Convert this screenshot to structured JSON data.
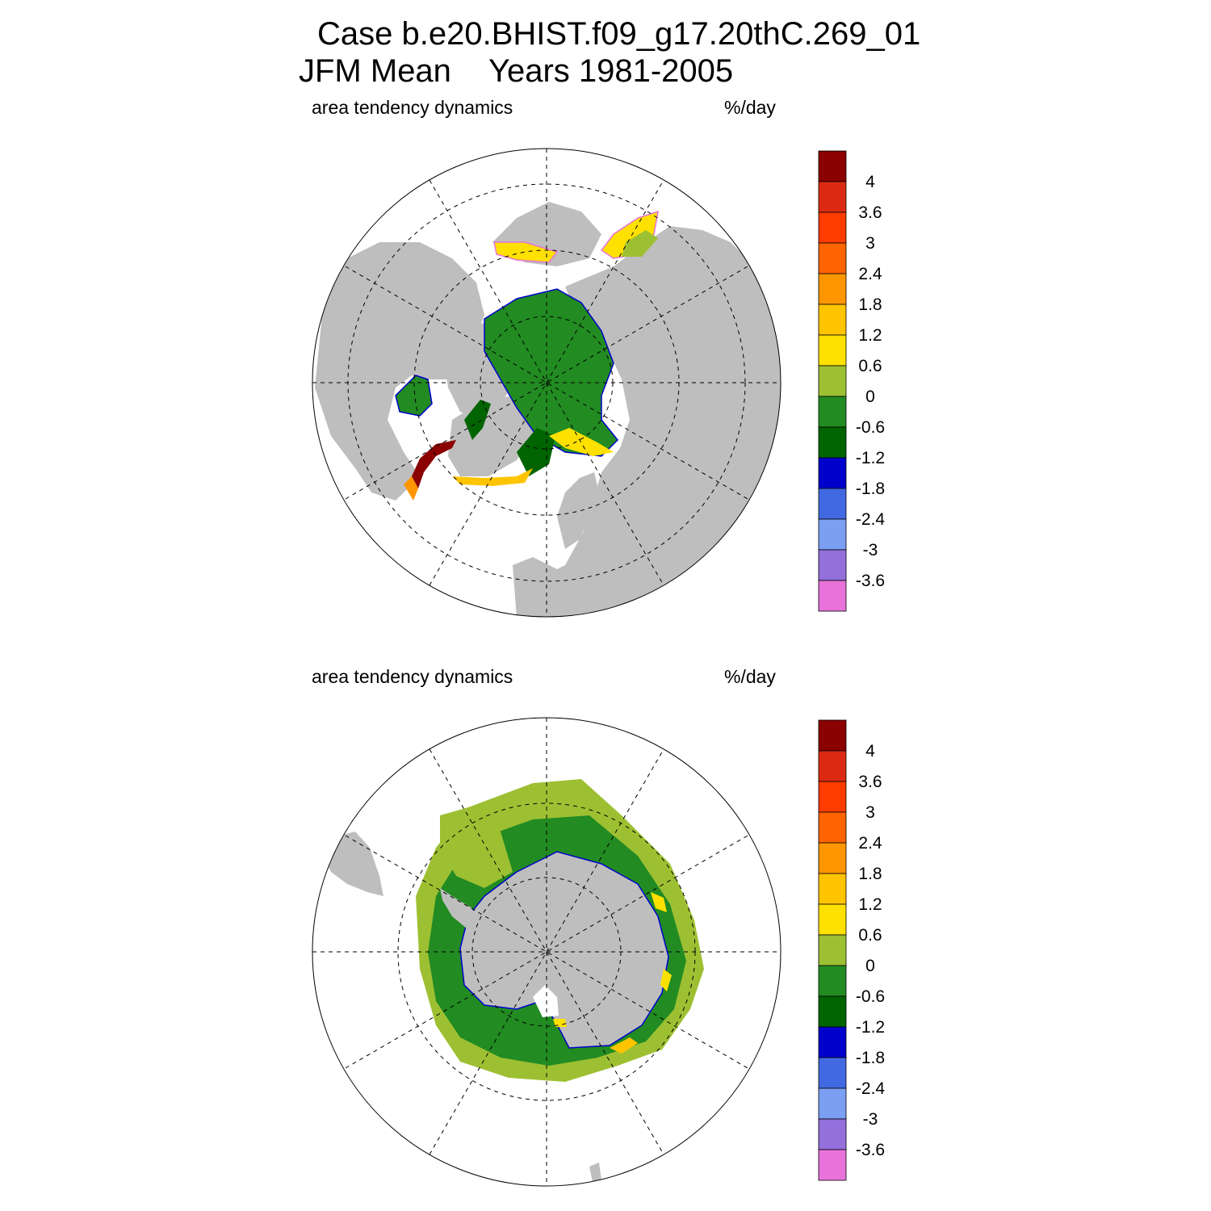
{
  "title": {
    "line1": "Case b.e20.BHIST.f09_g17.20thC.269_01",
    "line2_left": "JFM Mean",
    "line2_right": "Years 1981-2005"
  },
  "panels": [
    {
      "id": "north",
      "left_label": "area tendency dynamics",
      "right_label": "%/day"
    },
    {
      "id": "south",
      "left_label": "area tendency dynamics",
      "right_label": "%/day"
    }
  ],
  "colorbar": {
    "levels": [
      "4",
      "3.6",
      "3",
      "2.4",
      "1.8",
      "1.2",
      "0.6",
      "0",
      "-0.6",
      "-1.2",
      "-1.8",
      "-2.4",
      "-3",
      "-3.6"
    ],
    "colors": [
      "#8b0000",
      "#dc2a12",
      "#ff3c00",
      "#ff6400",
      "#ff9600",
      "#ffc400",
      "#ffe100",
      "#9dc032",
      "#228b22",
      "#006400",
      "#0000cd",
      "#4169e1",
      "#7b9ff2",
      "#9370db",
      "#e872da"
    ]
  },
  "colors": {
    "land": "#bebebe",
    "ocean": "#ffffff",
    "grid": "#000000"
  }
}
